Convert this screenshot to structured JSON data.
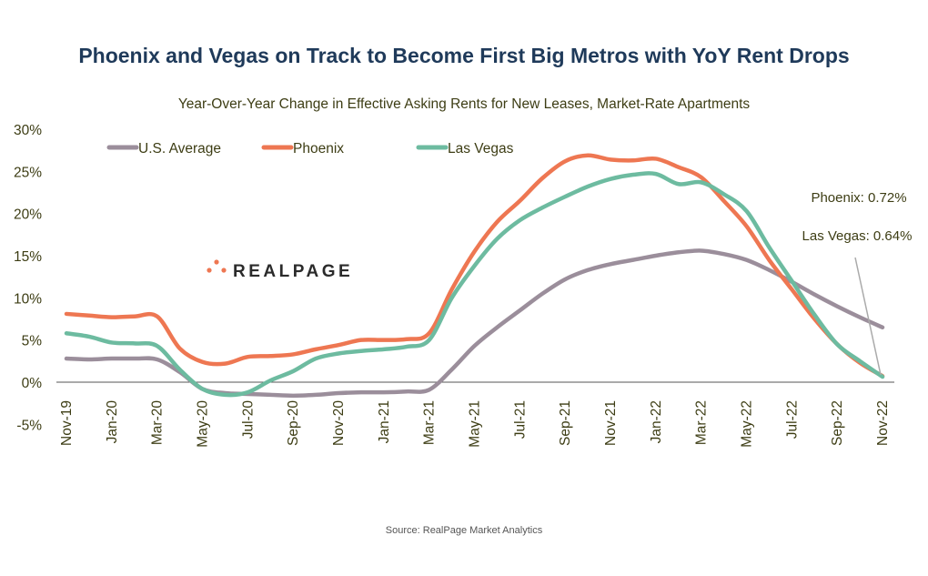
{
  "chart_data": {
    "type": "line",
    "title": "Phoenix and Vegas on Track to Become First Big Metros with YoY Rent Drops",
    "subtitle": "Year-Over-Year Change in Effective Asking Rents for New Leases, Market-Rate Apartments",
    "source": "Source: RealPage Market Analytics",
    "logo_text": "REALPAGE",
    "xlabel": "",
    "ylabel": "",
    "ylim": [
      -5,
      30
    ],
    "y_ticks": [
      "30%",
      "25%",
      "20%",
      "15%",
      "10%",
      "5%",
      "0%",
      "-5%"
    ],
    "y_tick_values": [
      30,
      25,
      20,
      15,
      10,
      5,
      0,
      -5
    ],
    "x": [
      "Nov-19",
      "Dec-19",
      "Jan-20",
      "Feb-20",
      "Mar-20",
      "Apr-20",
      "May-20",
      "Jun-20",
      "Jul-20",
      "Aug-20",
      "Sep-20",
      "Oct-20",
      "Nov-20",
      "Dec-20",
      "Jan-21",
      "Feb-21",
      "Mar-21",
      "Apr-21",
      "May-21",
      "Jun-21",
      "Jul-21",
      "Aug-21",
      "Sep-21",
      "Oct-21",
      "Nov-21",
      "Dec-21",
      "Jan-22",
      "Feb-22",
      "Mar-22",
      "Apr-22",
      "May-22",
      "Jun-22",
      "Jul-22",
      "Aug-22",
      "Sep-22",
      "Oct-22",
      "Nov-22"
    ],
    "x_tick_labels": [
      "Nov-19",
      "Jan-20",
      "Mar-20",
      "May-20",
      "Jul-20",
      "Sep-20",
      "Nov-20",
      "Jan-21",
      "Mar-21",
      "May-21",
      "Jul-21",
      "Sep-21",
      "Nov-21",
      "Jan-22",
      "Mar-22",
      "May-22",
      "Jul-22",
      "Sep-22",
      "Nov-22"
    ],
    "grid": false,
    "legend_position": "top-left",
    "series": [
      {
        "name": "U.S. Average",
        "color": "#9b8e9b",
        "values": [
          2.8,
          2.7,
          2.8,
          2.8,
          2.7,
          1.2,
          -0.8,
          -1.3,
          -1.4,
          -1.5,
          -1.6,
          -1.5,
          -1.3,
          -1.2,
          -1.2,
          -1.1,
          -0.9,
          1.5,
          4.3,
          6.5,
          8.5,
          10.5,
          12.2,
          13.3,
          14.0,
          14.5,
          15.0,
          15.4,
          15.6,
          15.2,
          14.5,
          13.3,
          11.9,
          10.4,
          9.0,
          7.7,
          6.5
        ]
      },
      {
        "name": "Phoenix",
        "color": "#ee7752",
        "values": [
          8.1,
          7.9,
          7.7,
          7.8,
          7.8,
          4.0,
          2.4,
          2.2,
          3.0,
          3.1,
          3.3,
          3.9,
          4.4,
          5.0,
          5.0,
          5.1,
          5.8,
          11.0,
          15.5,
          19.0,
          21.5,
          24.2,
          26.2,
          26.9,
          26.4,
          26.3,
          26.5,
          25.5,
          24.3,
          21.5,
          18.5,
          14.5,
          11.0,
          7.5,
          4.5,
          2.3,
          0.72
        ]
      },
      {
        "name": "Las Vegas",
        "color": "#6dbba0",
        "values": [
          5.8,
          5.4,
          4.7,
          4.6,
          4.3,
          1.5,
          -0.8,
          -1.5,
          -1.2,
          0.2,
          1.3,
          2.8,
          3.4,
          3.7,
          3.9,
          4.2,
          5.0,
          10.0,
          13.8,
          17.0,
          19.2,
          20.7,
          22.0,
          23.2,
          24.1,
          24.6,
          24.7,
          23.5,
          23.7,
          22.3,
          20.3,
          16.0,
          12.0,
          8.0,
          4.5,
          2.5,
          0.64
        ]
      }
    ],
    "annotations": [
      "Phoenix: 0.72%",
      "Las Vegas: 0.64%"
    ]
  }
}
